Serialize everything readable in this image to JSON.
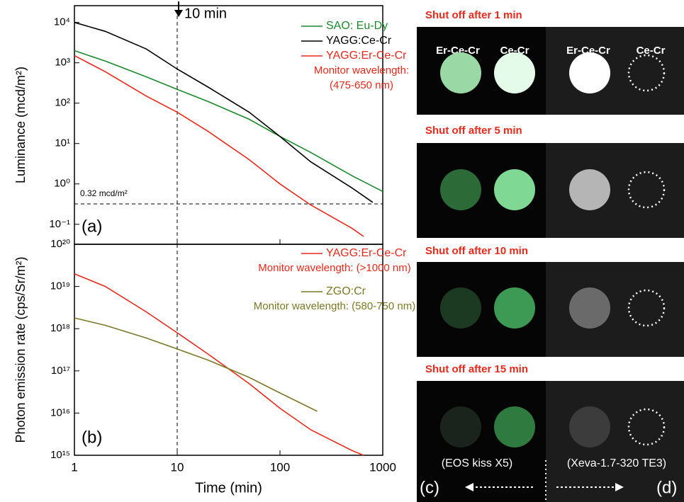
{
  "chart_data": [
    {
      "type": "line",
      "x_scale": "log",
      "y_scale": "log",
      "y_label": "Luminance (mcd/m²)",
      "panel_label": "(a)",
      "xlim": [
        1,
        1000
      ],
      "xticks": [
        1,
        10,
        100,
        1000
      ],
      "ylim": [
        0.032,
        26000
      ],
      "yticks": [
        {
          "value": 0.1,
          "label": "10⁻¹"
        },
        {
          "value": 1,
          "label": "10⁰"
        },
        {
          "value": 10,
          "label": "10¹"
        },
        {
          "value": 100,
          "label": "10²"
        },
        {
          "value": 1000,
          "label": "10³"
        },
        {
          "value": 10000,
          "label": "10⁴"
        }
      ],
      "vline": {
        "value": 10,
        "label": "10 min"
      },
      "hline": {
        "value": 0.32,
        "label": "0.32 mcd/m²"
      },
      "series": [
        {
          "name": "SAO: Eu-Dy",
          "color": "#1b8a2e",
          "x": [
            1,
            2,
            5,
            10,
            20,
            50,
            100,
            200,
            500,
            1000
          ],
          "values": [
            2000,
            1100,
            450,
            220,
            110,
            40,
            15,
            6,
            1.6,
            0.65
          ]
        },
        {
          "name": "YAGG:Ce-Cr",
          "color": "#000000",
          "x": [
            1,
            2,
            5,
            10,
            20,
            50,
            100,
            200,
            500,
            800
          ],
          "values": [
            10000,
            6000,
            2200,
            700,
            250,
            60,
            15,
            3.5,
            0.8,
            0.35
          ]
        },
        {
          "name": "YAGG:Er-Ce-Cr",
          "color": "#e8291c",
          "note": [
            "Monitor wavelength:",
            "(475-650 nm)"
          ],
          "x": [
            1,
            2,
            5,
            10,
            20,
            50,
            100,
            200,
            500,
            650
          ],
          "values": [
            1500,
            600,
            150,
            60,
            20,
            4,
            1,
            0.3,
            0.08,
            0.05
          ]
        }
      ]
    },
    {
      "type": "line",
      "x_scale": "log",
      "y_scale": "log",
      "x_label": "Time (min)",
      "y_label": "Photon emission rate (cps/Sr/m²)",
      "panel_label": "(b)",
      "xlim": [
        1,
        1000
      ],
      "xticks": [
        1,
        10,
        100,
        1000
      ],
      "ylim": [
        1000000000000000.0,
        1e+20
      ],
      "yticks": [
        {
          "value": 1000000000000000.0,
          "label": "10¹⁵"
        },
        {
          "value": 1e+16,
          "label": "10¹⁶"
        },
        {
          "value": 1e+17,
          "label": "10¹⁷"
        },
        {
          "value": 1e+18,
          "label": "10¹⁸"
        },
        {
          "value": 1e+19,
          "label": "10¹⁹"
        },
        {
          "value": 1e+20,
          "label": "10²⁰"
        }
      ],
      "vline": {
        "value": 10
      },
      "series": [
        {
          "name": "YAGG:Er-Ce-Cr",
          "color": "#e8291c",
          "note": [
            "Monitor wavelength: (>1000 nm)"
          ],
          "x": [
            1,
            2,
            5,
            10,
            20,
            50,
            100,
            200,
            500,
            650
          ],
          "values": [
            2e+19,
            1e+19,
            2.5e+18,
            8e+17,
            2.5e+17,
            5e+16,
            1.3e+16,
            4000000000000000.0,
            1300000000000000.0,
            1000000000000000.0
          ]
        },
        {
          "name": "ZGO:Cr",
          "color": "#7a7a28",
          "note": [
            "Monitor wavelength: (580-750 nm)"
          ],
          "x": [
            1,
            2,
            5,
            10,
            20,
            50,
            100,
            230
          ],
          "values": [
            1.8e+18,
            1.2e+18,
            6e+17,
            3.3e+17,
            1.8e+17,
            7e+16,
            3e+16,
            1.1e+16
          ]
        }
      ]
    }
  ],
  "photos": {
    "captions": [
      "Shut off after 1 min",
      "Shut off after 5 min",
      "Shut off after 10 min",
      "Shut off after 15 min"
    ],
    "column_labels": [
      "Er-Ce-Cr",
      "Ce-Cr",
      "Er-Ce-Cr",
      "Ce-Cr"
    ],
    "cameras": [
      "(EOS kiss X5)",
      "(Xeva-1.7-320 TE3)"
    ],
    "panel_labels": [
      "(c)",
      "(d)"
    ]
  }
}
